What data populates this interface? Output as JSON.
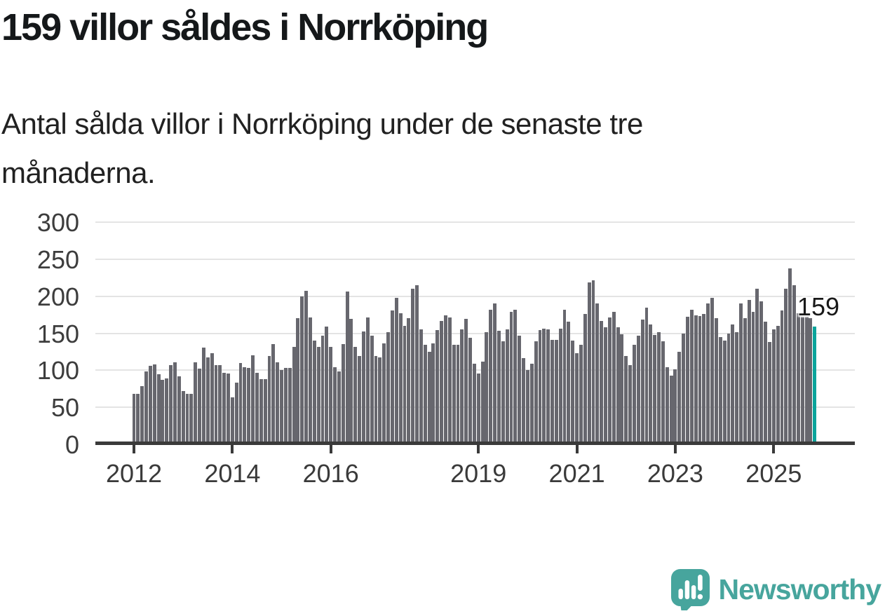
{
  "header": {
    "title": "159 villor såldes i Norrköping",
    "subtitle_line1": "Antal sålda villor i Norrköping under de senaste tre",
    "subtitle_line2": "månaderna."
  },
  "annotation": {
    "label": "159"
  },
  "footer": {
    "logo_text": "Newsworthy"
  },
  "colors": {
    "bar": "#67676e",
    "highlight": "#0ba49b",
    "axis": "#3a3a3a",
    "grid": "#e4e4e4",
    "title_text": "#15181a",
    "logo": "#47a59d"
  },
  "chart_data": {
    "type": "bar",
    "title": "159 villor såldes i Norrköping",
    "ylabel": "",
    "xlabel": "",
    "ylim": [
      0,
      300
    ],
    "grid": true,
    "y_ticks": [
      0,
      50,
      100,
      150,
      200,
      250,
      300
    ],
    "x_tick_labels": [
      "2012",
      "2014",
      "2016",
      "2019",
      "2021",
      "2023",
      "2025"
    ],
    "x_tick_month_indices": [
      0,
      24,
      48,
      84,
      108,
      132,
      156
    ],
    "values": [
      68,
      68,
      79,
      98,
      106,
      108,
      95,
      87,
      89,
      107,
      111,
      92,
      72,
      68,
      68,
      111,
      102,
      131,
      117,
      123,
      107,
      107,
      97,
      96,
      63,
      83,
      110,
      104,
      103,
      120,
      97,
      88,
      88,
      119,
      135,
      111,
      100,
      103,
      103,
      132,
      170,
      200,
      207,
      171,
      140,
      132,
      147,
      159,
      132,
      104,
      98,
      135,
      206,
      169,
      132,
      119,
      152,
      171,
      147,
      119,
      117,
      136,
      151,
      181,
      198,
      177,
      160,
      170,
      210,
      215,
      155,
      134,
      125,
      136,
      154,
      167,
      174,
      171,
      134,
      134,
      155,
      169,
      144,
      109,
      96,
      112,
      151,
      182,
      190,
      153,
      139,
      155,
      179,
      182,
      147,
      116,
      100,
      109,
      139,
      154,
      156,
      155,
      141,
      141,
      156,
      182,
      166,
      140,
      123,
      134,
      176,
      219,
      221,
      190,
      167,
      158,
      171,
      179,
      158,
      149,
      119,
      107,
      134,
      147,
      168,
      185,
      162,
      148,
      151,
      139,
      104,
      93,
      101,
      125,
      150,
      172,
      182,
      174,
      173,
      176,
      190,
      198,
      170,
      145,
      140,
      150,
      162,
      151,
      190,
      170,
      195,
      179,
      210,
      193,
      166,
      138,
      155,
      160,
      181,
      210,
      238,
      215,
      177,
      174,
      175,
      170,
      159
    ],
    "highlight_index_from_end": 1,
    "highlight_value": 159
  }
}
